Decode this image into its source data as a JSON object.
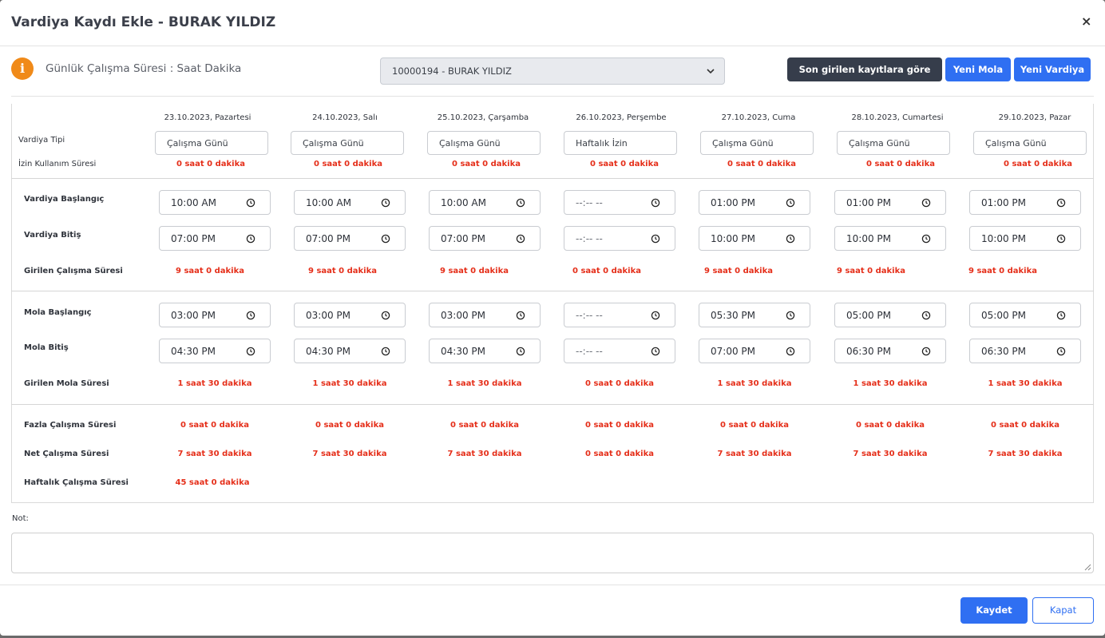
{
  "header": {
    "title": "Vardiya Kaydı Ekle - BURAK YILDIZ",
    "close_label": "×"
  },
  "info": {
    "icon": "info-icon",
    "icon_glyph": "i",
    "label": "Günlük Çalışma Süresi : Saat Dakika"
  },
  "employee_select": {
    "value": "10000194 - BURAK YILDIZ"
  },
  "toolbar": {
    "fetch_label": "Son girilen kayıtlara göre getir",
    "new_break_label": "Yeni Mola",
    "new_shift_label": "Yeni Vardiya"
  },
  "labels": {
    "shift_type": "Vardiya Tipi",
    "leave_usage": "İzin Kullanım Süresi",
    "shift_start": "Vardiya Başlangıç",
    "shift_end": "Vardiya Bitiş",
    "entered_work": "Girilen Çalışma Süresi",
    "break_start": "Mola Başlangıç",
    "break_end": "Mola Bitiş",
    "entered_break": "Girilen Mola Süresi",
    "overtime": "Fazla Çalışma Süresi",
    "net_work": "Net Çalışma Süresi",
    "weekly_work": "Haftalık Çalışma Süresi"
  },
  "days": [
    {
      "date": "23.10.2023, Pazartesi",
      "shift_type": "Çalışma Günü",
      "leave": "0 saat 0 dakika",
      "start": "10:00 AM",
      "end": "07:00 PM",
      "work": "9 saat 0 dakika",
      "break_start": "03:00 PM",
      "break_end": "04:30 PM",
      "break": "1 saat 30 dakika",
      "overtime": "0 saat 0 dakika",
      "net": "7 saat 30 dakika"
    },
    {
      "date": "24.10.2023, Salı",
      "shift_type": "Çalışma Günü",
      "leave": "0 saat 0 dakika",
      "start": "10:00 AM",
      "end": "07:00 PM",
      "work": "9 saat 0 dakika",
      "break_start": "03:00 PM",
      "break_end": "04:30 PM",
      "break": "1 saat 30 dakika",
      "overtime": "0 saat 0 dakika",
      "net": "7 saat 30 dakika"
    },
    {
      "date": "25.10.2023, Çarşamba",
      "shift_type": "Çalışma Günü",
      "leave": "0 saat 0 dakika",
      "start": "10:00 AM",
      "end": "07:00 PM",
      "work": "9 saat 0 dakika",
      "break_start": "03:00 PM",
      "break_end": "04:30 PM",
      "break": "1 saat 30 dakika",
      "overtime": "0 saat 0 dakika",
      "net": "7 saat 30 dakika"
    },
    {
      "date": "26.10.2023, Perşembe",
      "shift_type": "Haftalık İzin",
      "leave": "0 saat 0 dakika",
      "start": "--:-- --",
      "end": "--:-- --",
      "work": "0 saat 0 dakika",
      "break_start": "--:-- --",
      "break_end": "--:-- --",
      "break": "0 saat 0 dakika",
      "overtime": "0 saat 0 dakika",
      "net": "0 saat 0 dakika"
    },
    {
      "date": "27.10.2023, Cuma",
      "shift_type": "Çalışma Günü",
      "leave": "0 saat 0 dakika",
      "start": "01:00 PM",
      "end": "10:00 PM",
      "work": "9 saat 0 dakika",
      "break_start": "05:30 PM",
      "break_end": "07:00 PM",
      "break": "1 saat 30 dakika",
      "overtime": "0 saat 0 dakika",
      "net": "7 saat 30 dakika"
    },
    {
      "date": "28.10.2023, Cumartesi",
      "shift_type": "Çalışma Günü",
      "leave": "0 saat 0 dakika",
      "start": "01:00 PM",
      "end": "10:00 PM",
      "work": "9 saat 0 dakika",
      "break_start": "05:00 PM",
      "break_end": "06:30 PM",
      "break": "1 saat 30 dakika",
      "overtime": "0 saat 0 dakika",
      "net": "7 saat 30 dakika"
    },
    {
      "date": "29.10.2023, Pazar",
      "shift_type": "Çalışma Günü",
      "leave": "0 saat 0 dakika",
      "start": "01:00 PM",
      "end": "10:00 PM",
      "work": "9 saat 0 dakika",
      "break_start": "05:00 PM",
      "break_end": "06:30 PM",
      "break": "1 saat 30 dakika",
      "overtime": "0 saat 0 dakika",
      "net": "7 saat 30 dakika"
    }
  ],
  "weekly_total": "45 saat 0 dakika",
  "note": {
    "label": "Not:",
    "value": ""
  },
  "footer": {
    "save_label": "Kaydet",
    "close_label": "Kapat"
  },
  "colors": {
    "primary": "#2f6ff2",
    "dark_button": "#363d4b",
    "warning": "#f08a19",
    "value_red": "#e52f1a"
  }
}
